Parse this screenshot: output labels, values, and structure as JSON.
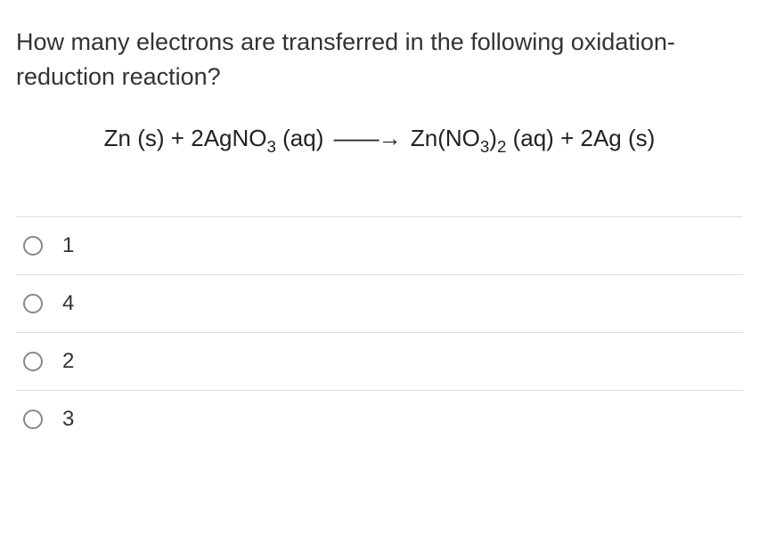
{
  "question": {
    "text": "How many electrons are transferred in the following oxidation-reduction reaction?",
    "text_color": "#333333",
    "font_size_pt": 20
  },
  "equation": {
    "display": "Zn (s) + 2AgNO3 (aq) ⟶ Zn(NO3)2 (aq) + 2Ag (s)",
    "reactant1": "Zn",
    "reactant1_state": "(s)",
    "reactant2_coef": "2",
    "reactant2": "AgNO",
    "reactant2_sub": "3",
    "reactant2_state": "(aq)",
    "arrow": "⟶",
    "product1": "Zn(NO",
    "product1_sub1": "3",
    "product1_mid": ")",
    "product1_sub2": "2",
    "product1_state": "(aq)",
    "product2_coef": "2",
    "product2": "Ag",
    "product2_state": "(s)",
    "font_size_pt": 19,
    "text_color": "#222222"
  },
  "options": [
    {
      "label": "1",
      "selected": false
    },
    {
      "label": "4",
      "selected": false
    },
    {
      "label": "2",
      "selected": false
    },
    {
      "label": "3",
      "selected": false
    }
  ],
  "styling": {
    "background": "#ffffff",
    "border_color": "#dcdcdc",
    "radio_border": "#888888",
    "option_font_size_pt": 18
  }
}
